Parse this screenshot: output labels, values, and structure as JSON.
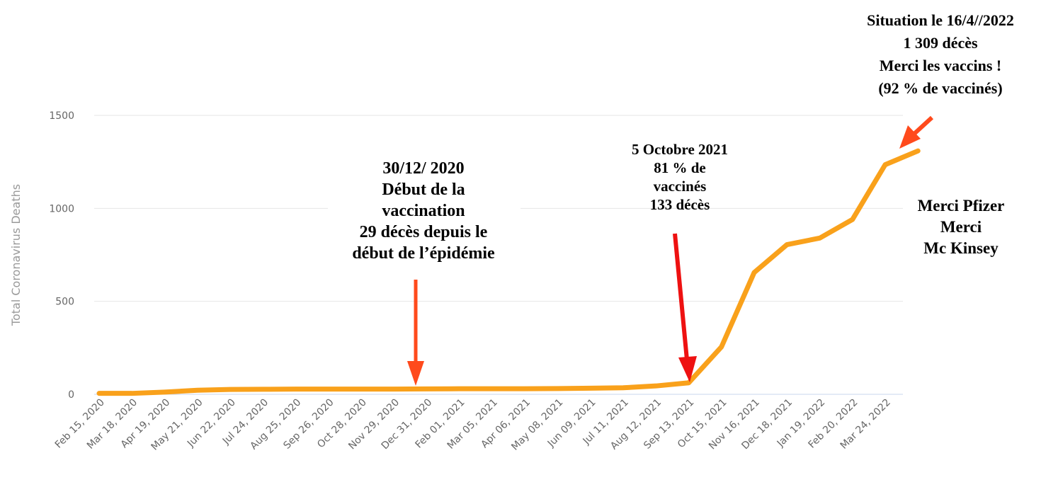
{
  "chart_data": {
    "type": "line",
    "y_label": "Total Coronavirus Deaths",
    "categories": [
      "Feb 15, 2020",
      "Mar 18, 2020",
      "Apr 19, 2020",
      "May 21, 2020",
      "Jun 22, 2020",
      "Jul 24, 2020",
      "Aug 25, 2020",
      "Sep 26, 2020",
      "Oct 28, 2020",
      "Nov 29, 2020",
      "Dec 31, 2020",
      "Feb 01, 2021",
      "Mar 05, 2021",
      "Apr 06, 2021",
      "May 08, 2021",
      "Jun 09, 2021",
      "Jul 11, 2021",
      "Aug 12, 2021",
      "Sep 13, 2021",
      "Oct 15, 2021",
      "Nov 16, 2021",
      "Dec 18, 2021",
      "Jan 19, 2022",
      "Feb 20, 2022",
      "Mar 24, 2022",
      null
    ],
    "series": [
      {
        "name": "Total Coronavirus Deaths",
        "color": "#f9a11b",
        "values": [
          5,
          5,
          12,
          22,
          26,
          27,
          28,
          28,
          28,
          28,
          29,
          30,
          30,
          30,
          31,
          33,
          35,
          45,
          62,
          255,
          655,
          805,
          840,
          940,
          1235,
          1309
        ]
      }
    ],
    "ylim": [
      0,
      1500
    ],
    "yticks": [
      0,
      500,
      1000,
      1500
    ],
    "grid": true,
    "annotations": [
      {
        "lines": [
          "30/12/ 2020",
          "Début de la",
          "vaccination",
          "29 décès depuis le",
          "début de l’épidémie"
        ]
      },
      {
        "lines": [
          "5 Octobre 2021",
          "81 % de",
          "vaccinés",
          "133 décès"
        ]
      },
      {
        "lines": [
          "Situation le 16/4//2022",
          "1 309 décès",
          "Merci les vaccins !",
          "(92 % de vaccinés)"
        ]
      },
      {
        "lines": [
          "Merci Pfizer",
          "Merci",
          "Mc Kinsey"
        ]
      }
    ]
  }
}
